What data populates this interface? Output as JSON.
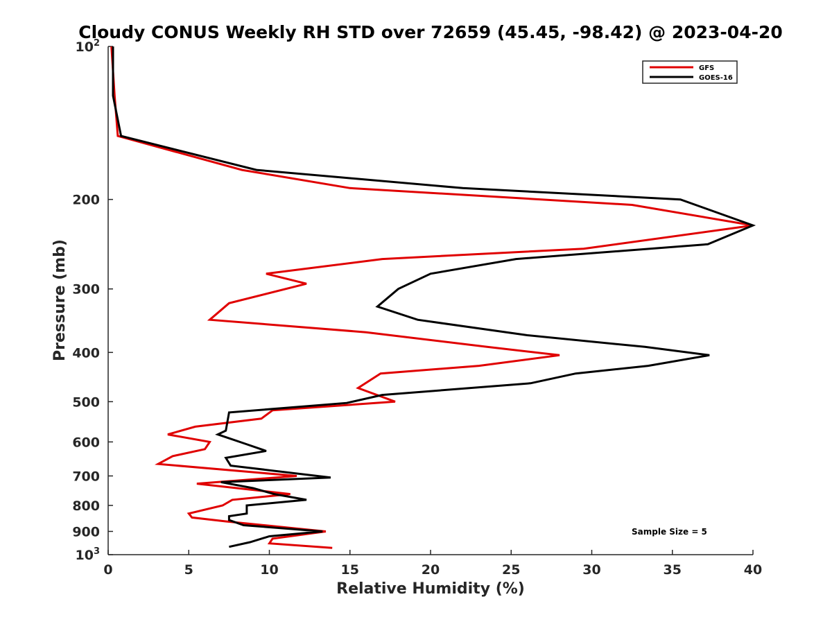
{
  "chart_data": {
    "type": "line",
    "title": "Cloudy CONUS Weekly RH STD over 72659 (45.45, -98.42) @ 2023-04-20",
    "xlabel": "Relative Humidity (%)",
    "ylabel": "Pressure (mb)",
    "xlim": [
      0,
      40
    ],
    "ylim": [
      100,
      1000
    ],
    "y_scale": "log",
    "y_reversed": true,
    "grid": false,
    "legend_position": "top-right",
    "annotation": "Sample Size = 5",
    "x_ticks": [
      "0",
      "5",
      "10",
      "15",
      "20",
      "25",
      "30",
      "35",
      "40"
    ],
    "y_ticks": [
      {
        "value": 100,
        "base": "10",
        "exp": "2"
      },
      {
        "value": 200,
        "base": "200",
        "exp": ""
      },
      {
        "value": 300,
        "base": "300",
        "exp": ""
      },
      {
        "value": 400,
        "base": "400",
        "exp": ""
      },
      {
        "value": 500,
        "base": "500",
        "exp": ""
      },
      {
        "value": 600,
        "base": "600",
        "exp": ""
      },
      {
        "value": 700,
        "base": "700",
        "exp": ""
      },
      {
        "value": 800,
        "base": "800",
        "exp": ""
      },
      {
        "value": 900,
        "base": "900",
        "exp": ""
      },
      {
        "value": 1000,
        "base": "10",
        "exp": "3"
      }
    ],
    "series": [
      {
        "name": "GFS",
        "color": "#e00000",
        "points": [
          [
            0.2,
            100
          ],
          [
            0.4,
            125
          ],
          [
            0.6,
            150
          ],
          [
            8.3,
            175
          ],
          [
            15.0,
            190
          ],
          [
            32.5,
            205
          ],
          [
            40.0,
            225
          ],
          [
            29.5,
            250
          ],
          [
            17.0,
            262
          ],
          [
            9.8,
            280
          ],
          [
            12.3,
            293
          ],
          [
            7.5,
            320
          ],
          [
            6.3,
            345
          ],
          [
            16.0,
            365
          ],
          [
            23.5,
            390
          ],
          [
            28.0,
            405
          ],
          [
            23.0,
            425
          ],
          [
            16.9,
            440
          ],
          [
            15.5,
            470
          ],
          [
            17.8,
            500
          ],
          [
            10.2,
            520
          ],
          [
            9.5,
            540
          ],
          [
            5.4,
            560
          ],
          [
            3.7,
            580
          ],
          [
            6.3,
            600
          ],
          [
            6.0,
            620
          ],
          [
            4.0,
            640
          ],
          [
            3.1,
            663
          ],
          [
            11.7,
            700
          ],
          [
            5.5,
            725
          ],
          [
            11.3,
            760
          ],
          [
            7.7,
            780
          ],
          [
            7.1,
            800
          ],
          [
            5.0,
            830
          ],
          [
            5.2,
            845
          ],
          [
            7.3,
            860
          ],
          [
            13.5,
            900
          ],
          [
            10.2,
            930
          ],
          [
            10.0,
            950
          ],
          [
            13.9,
            970
          ]
        ]
      },
      {
        "name": "GOES-16",
        "color": "#000000",
        "points": [
          [
            0.3,
            100
          ],
          [
            0.3,
            125
          ],
          [
            0.8,
            150
          ],
          [
            9.2,
            175
          ],
          [
            22.0,
            190
          ],
          [
            35.5,
            200
          ],
          [
            40.0,
            225
          ],
          [
            37.2,
            245
          ],
          [
            25.3,
            262
          ],
          [
            20.0,
            280
          ],
          [
            18.0,
            300
          ],
          [
            16.7,
            325
          ],
          [
            19.2,
            345
          ],
          [
            26.0,
            370
          ],
          [
            33.3,
            390
          ],
          [
            37.3,
            405
          ],
          [
            33.5,
            425
          ],
          [
            29.0,
            440
          ],
          [
            26.2,
            460
          ],
          [
            17.0,
            485
          ],
          [
            14.8,
            503
          ],
          [
            7.5,
            525
          ],
          [
            7.3,
            570
          ],
          [
            6.8,
            580
          ],
          [
            8.5,
            605
          ],
          [
            9.8,
            625
          ],
          [
            7.3,
            645
          ],
          [
            7.6,
            668
          ],
          [
            13.8,
            705
          ],
          [
            7.0,
            720
          ],
          [
            9.0,
            740
          ],
          [
            10.3,
            760
          ],
          [
            12.3,
            780
          ],
          [
            8.6,
            800
          ],
          [
            8.6,
            830
          ],
          [
            7.5,
            840
          ],
          [
            7.5,
            855
          ],
          [
            8.4,
            875
          ],
          [
            13.3,
            900
          ],
          [
            10.0,
            920
          ],
          [
            8.8,
            945
          ],
          [
            7.5,
            965
          ]
        ]
      }
    ]
  }
}
